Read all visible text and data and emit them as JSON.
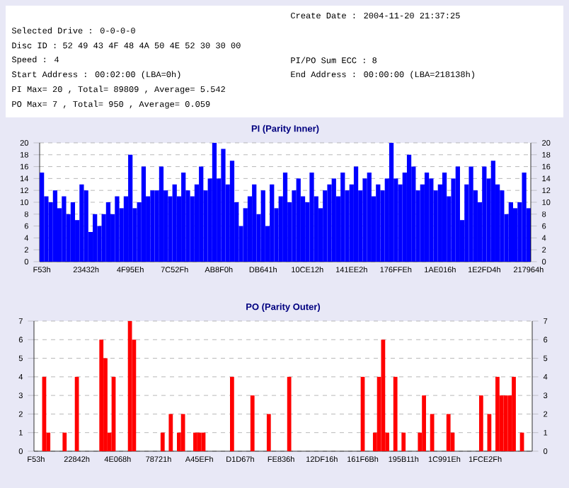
{
  "chart_data": [
    {
      "type": "bar",
      "title": "PI (Parity Inner)",
      "annotations": [
        "Create Date    : 2004-11-20 21:37:25",
        "Selected Drive : 0-0-0-0",
        "Disc ID : 52 49 43 4F 48 4A 50 4E 52 30 30 00",
        "Speed          : 4",
        "PI/PO Sum ECC : 8",
        "Start Address  : 00:02:00 (LBA=0h)",
        "End Address    : 00:00:00 (LBA=218138h)",
        "PI Max= 20 , Total= 89809 , Average= 5.542",
        "PO Max= 7 , Total= 950 , Average= 0.059"
      ],
      "categories": [
        "F53h",
        null,
        null,
        null,
        null,
        null,
        null,
        null,
        null,
        null,
        "23432h",
        null,
        null,
        null,
        null,
        null,
        null,
        null,
        null,
        null,
        "4F95Eh",
        null,
        null,
        null,
        null,
        null,
        null,
        null,
        null,
        null,
        "7C52Fh",
        null,
        null,
        null,
        null,
        null,
        null,
        null,
        null,
        null,
        "AB8F0h",
        null,
        null,
        null,
        null,
        null,
        null,
        null,
        null,
        null,
        "DB641h",
        null,
        null,
        null,
        null,
        null,
        null,
        null,
        null,
        null,
        "10CE12h",
        null,
        null,
        null,
        null,
        null,
        null,
        null,
        null,
        null,
        "141EE2h",
        null,
        null,
        null,
        null,
        null,
        null,
        null,
        null,
        null,
        "176FFEh",
        null,
        null,
        null,
        null,
        null,
        null,
        null,
        null,
        null,
        "1AE016h",
        null,
        null,
        null,
        null,
        null,
        null,
        null,
        null,
        null,
        "1E2FD4h",
        null,
        null,
        null,
        null,
        null,
        null,
        null,
        null,
        null,
        "217964h"
      ],
      "values": [
        15,
        11,
        10,
        12,
        9,
        11,
        8,
        10,
        7,
        13,
        12,
        5,
        8,
        6,
        8,
        10,
        8,
        11,
        9,
        11,
        18,
        9,
        10,
        16,
        11,
        12,
        12,
        16,
        12,
        11,
        13,
        11,
        15,
        12,
        11,
        13,
        16,
        12,
        14,
        20,
        14,
        19,
        13,
        17,
        10,
        6,
        9,
        11,
        13,
        8,
        12,
        6,
        13,
        9,
        11,
        15,
        10,
        12,
        14,
        11,
        10,
        15,
        11,
        9,
        12,
        13,
        14,
        11,
        15,
        12,
        13,
        16,
        12,
        14,
        15,
        11,
        13,
        12,
        14,
        20,
        14,
        13,
        15,
        18,
        16,
        12,
        13,
        15,
        14,
        12,
        13,
        15,
        11,
        14,
        16,
        7,
        13,
        16,
        12,
        10,
        16,
        14,
        17,
        13,
        12,
        8,
        10,
        9,
        10,
        15,
        9
      ],
      "color": "#0000ff",
      "ylim": [
        0,
        20
      ],
      "yticks": [
        0,
        2,
        4,
        6,
        8,
        10,
        12,
        14,
        16,
        18,
        20
      ],
      "y2lim": [
        0,
        20
      ],
      "y2ticks": [
        0,
        2,
        4,
        6,
        8,
        10,
        12,
        14,
        16,
        18,
        20
      ],
      "grid": "y"
    },
    {
      "type": "bar",
      "title": "PO (Parity Outer)",
      "categories": [
        "F53h",
        null,
        null,
        null,
        null,
        null,
        null,
        null,
        null,
        null,
        "22842h",
        null,
        null,
        null,
        null,
        null,
        null,
        null,
        null,
        null,
        "4E068h",
        null,
        null,
        null,
        null,
        null,
        null,
        null,
        null,
        null,
        "78721h",
        null,
        null,
        null,
        null,
        null,
        null,
        null,
        null,
        null,
        "A45EFh",
        null,
        null,
        null,
        null,
        null,
        null,
        null,
        null,
        null,
        "D1D67h",
        null,
        null,
        null,
        null,
        null,
        null,
        null,
        null,
        null,
        "FE836h",
        null,
        null,
        null,
        null,
        null,
        null,
        null,
        null,
        null,
        "12DF16h",
        null,
        null,
        null,
        null,
        null,
        null,
        null,
        null,
        null,
        "161F6Bh",
        null,
        null,
        null,
        null,
        null,
        null,
        null,
        null,
        null,
        "195B11h",
        null,
        null,
        null,
        null,
        null,
        null,
        null,
        null,
        null,
        "1C991Eh",
        null,
        null,
        null,
        null,
        null,
        null,
        null,
        null,
        null,
        "1FCE2Fh",
        null,
        null,
        null,
        null,
        null,
        null,
        null,
        null,
        null,
        null,
        null
      ],
      "values": [
        0,
        0,
        4,
        1,
        0,
        0,
        0,
        1,
        0,
        0,
        4,
        0,
        0,
        0,
        0,
        0,
        6,
        5,
        1,
        4,
        0,
        0,
        0,
        7,
        6,
        0,
        0,
        0,
        0,
        0,
        0,
        1,
        0,
        2,
        0,
        1,
        2,
        0,
        0,
        1,
        1,
        1,
        0,
        0,
        0,
        0,
        0,
        0,
        4,
        0,
        0,
        0,
        0,
        3,
        0,
        0,
        0,
        2,
        0,
        0,
        0,
        0,
        4,
        0,
        0,
        0,
        0,
        0,
        0,
        0,
        0,
        0,
        0,
        0,
        0,
        0,
        0,
        0,
        0,
        0,
        4,
        0,
        0,
        1,
        4,
        6,
        1,
        0,
        4,
        0,
        1,
        0,
        0,
        0,
        1,
        3,
        0,
        2,
        0,
        0,
        0,
        2,
        1,
        0,
        0,
        0,
        0,
        0,
        0,
        3,
        0,
        2,
        0,
        4,
        3,
        3,
        3,
        4,
        0,
        1,
        0,
        0
      ],
      "color": "#ff0000",
      "ylim": [
        0,
        7
      ],
      "yticks": [
        0,
        1,
        2,
        3,
        4,
        5,
        6,
        7
      ],
      "y2lim": [
        0,
        7
      ],
      "y2ticks": [
        0,
        1,
        2,
        3,
        4,
        5,
        6,
        7
      ],
      "grid": "y"
    }
  ]
}
